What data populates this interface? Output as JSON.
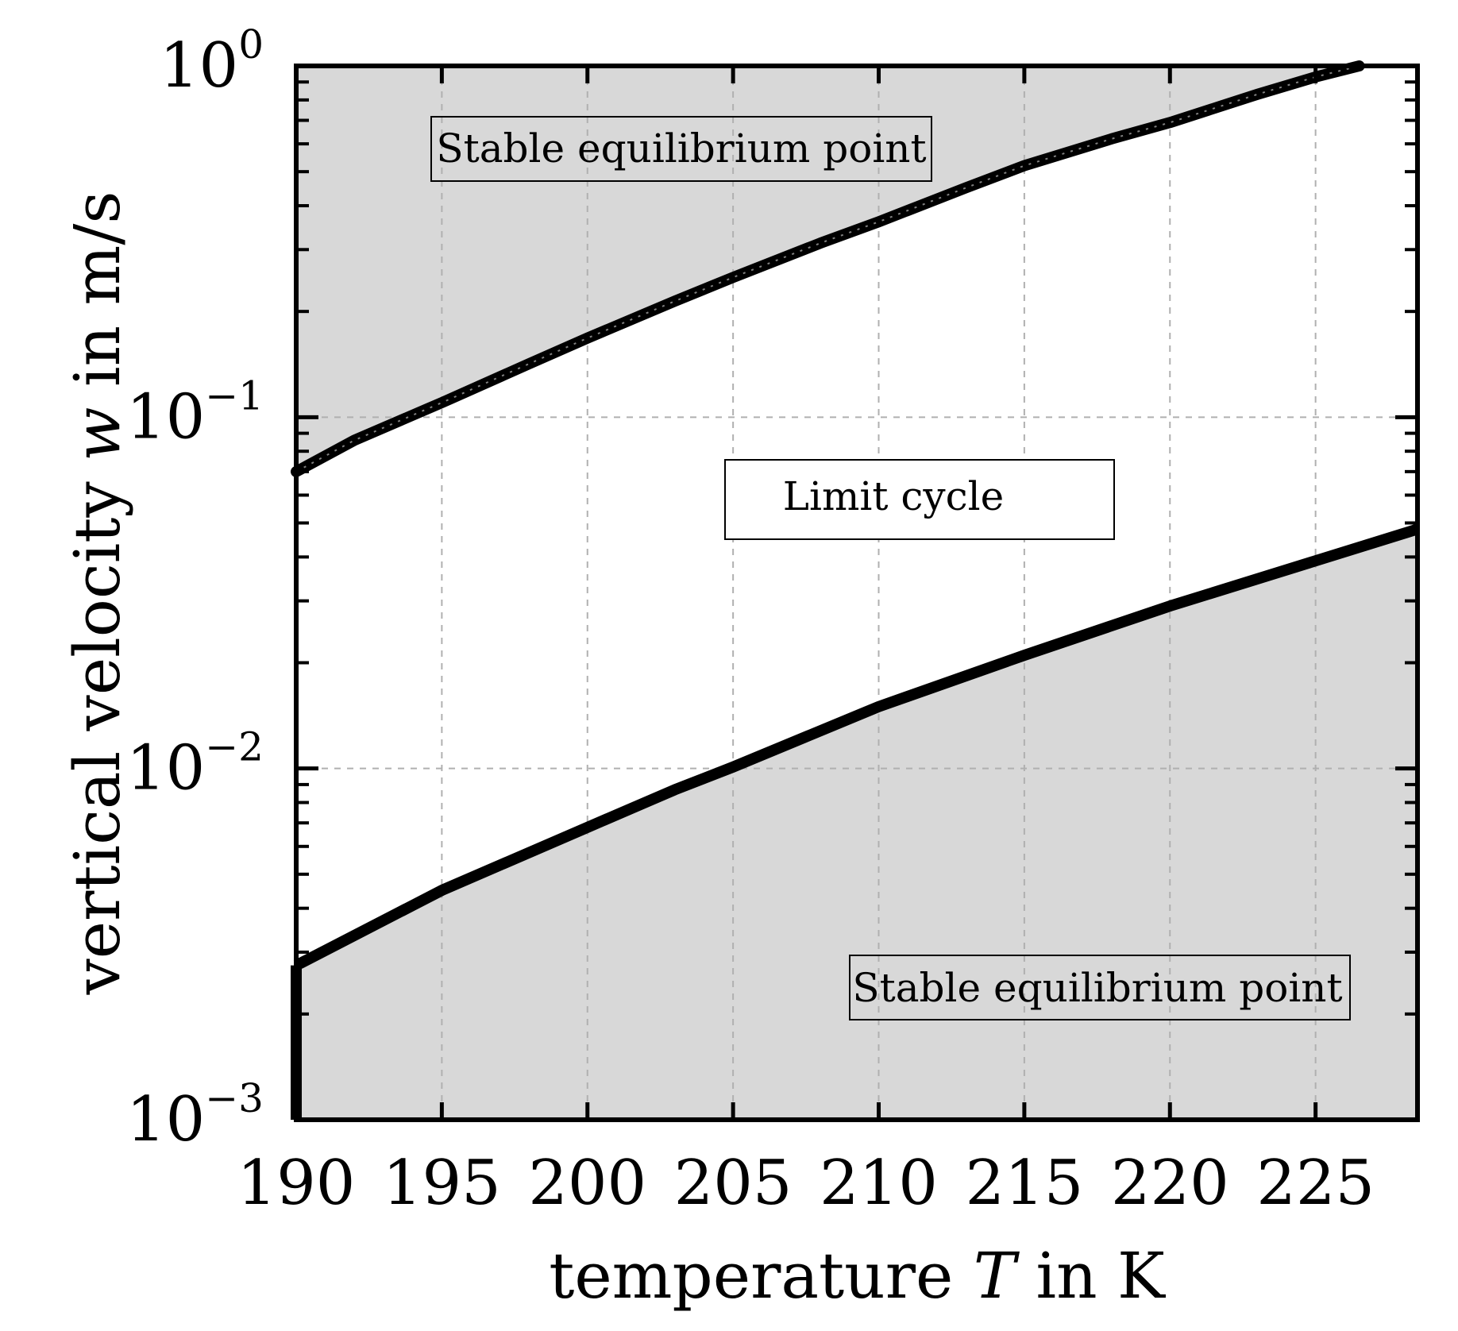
{
  "chart_data": {
    "type": "line",
    "xlabel": "temperature T in K",
    "xlabel_parts": {
      "before": "temperature ",
      "variable": "T",
      "after": " in K"
    },
    "ylabel": "vertical velocity w in m/s",
    "ylabel_parts": {
      "before": "vertical velocity ",
      "variable": "w",
      "after": " in m/s"
    },
    "xlim": [
      190,
      228.5
    ],
    "ylim": [
      0.001,
      1
    ],
    "yscale": "log",
    "grid": true,
    "x_ticks": [
      190,
      195,
      200,
      205,
      210,
      215,
      220,
      225
    ],
    "x_tick_labels": [
      "190",
      "195",
      "200",
      "205",
      "210",
      "215",
      "220",
      "225"
    ],
    "y_ticks": [
      {
        "value": 1,
        "base": "10",
        "exp": "0"
      },
      {
        "value": 0.1,
        "base": "10",
        "exp": "−1"
      },
      {
        "value": 0.01,
        "base": "10",
        "exp": "−2"
      },
      {
        "value": 0.001,
        "base": "10",
        "exp": "−3"
      }
    ],
    "series": [
      {
        "x": [
          190,
          192,
          195,
          198,
          200,
          203,
          205,
          208,
          210,
          213,
          215,
          218,
          220,
          223,
          225,
          226.5
        ],
        "y": [
          0.07,
          0.086,
          0.11,
          0.142,
          0.168,
          0.214,
          0.25,
          0.313,
          0.36,
          0.45,
          0.52,
          0.62,
          0.69,
          0.83,
          0.93,
          1.0
        ]
      },
      {
        "x": [
          190,
          195,
          200,
          203,
          205,
          210,
          215,
          220,
          225,
          228.5
        ],
        "y": [
          0.00275,
          0.0045,
          0.0068,
          0.0087,
          0.0101,
          0.015,
          0.021,
          0.029,
          0.039,
          0.048
        ]
      }
    ],
    "regions": [
      {
        "label": "Stable equilibrium point",
        "fill": "#d8d8d8"
      },
      {
        "label": "Limit cycle",
        "fill": "#ffffff"
      },
      {
        "label": "Stable equilibrium point",
        "fill": "#d8d8d8"
      }
    ],
    "colors": {
      "line": "#000000",
      "shade": "#d8d8d8",
      "grid": "#b0b0b0"
    }
  }
}
